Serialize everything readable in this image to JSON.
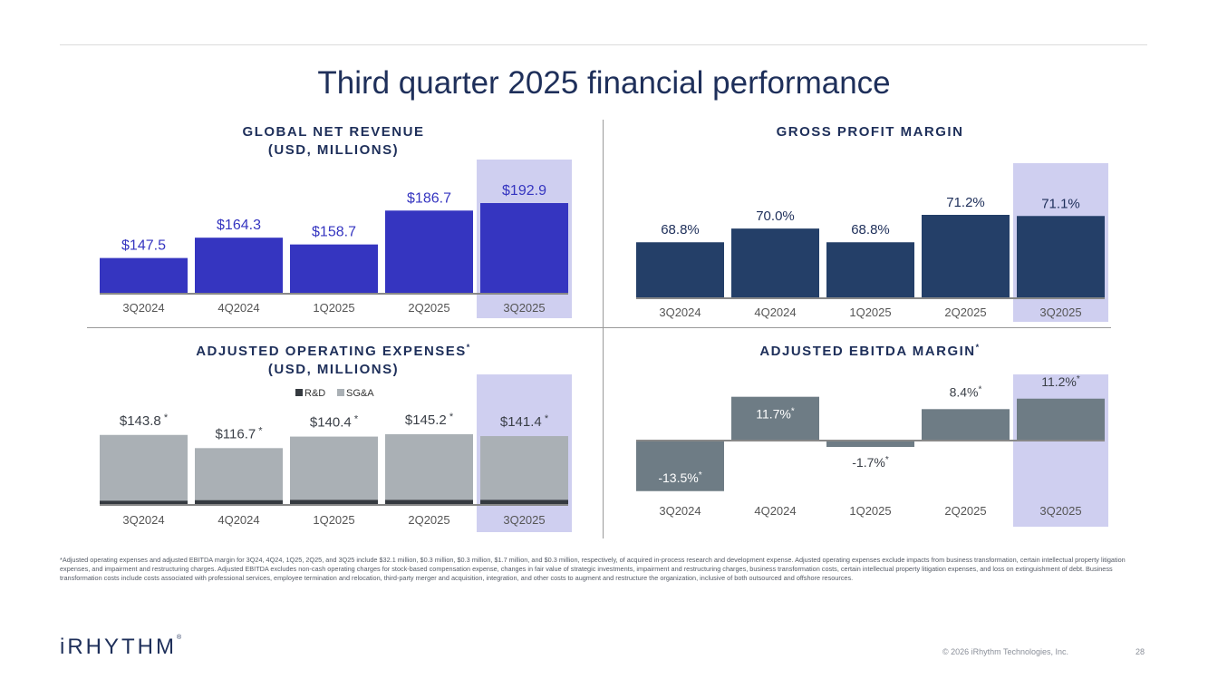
{
  "title": "Third quarter 2025 financial performance",
  "colors": {
    "revenue_bar": "#3535c0",
    "revenue_label": "#3535c0",
    "navy_bar": "#243f68",
    "gray_bar": "#6e7c85",
    "sga": "#aab0b5",
    "rnd": "#353a40",
    "highlight": "#cfcff0",
    "axis": "#888888",
    "tick": "#555555"
  },
  "chart_data": [
    {
      "type": "bar",
      "title": "GLOBAL NET REVENUE",
      "subtitle": "(USD, MILLIONS)",
      "categories": [
        "3Q2024",
        "4Q2024",
        "1Q2025",
        "2Q2025",
        "3Q2025"
      ],
      "values": [
        147.5,
        164.3,
        158.7,
        186.7,
        192.9
      ],
      "labels": [
        "$147.5",
        "$164.3",
        "$158.7",
        "$186.7",
        "$192.9"
      ],
      "highlight": "3Q2025",
      "ylim": [
        100,
        200
      ]
    },
    {
      "type": "bar",
      "title": "GROSS PROFIT MARGIN",
      "subtitle": "",
      "categories": [
        "3Q2024",
        "4Q2024",
        "1Q2025",
        "2Q2025",
        "3Q2025"
      ],
      "values": [
        68.8,
        70.0,
        68.8,
        71.2,
        71.1
      ],
      "labels": [
        "68.8%",
        "70.0%",
        "68.8%",
        "71.2%",
        "71.1%"
      ],
      "highlight": "3Q2025",
      "ylim": [
        65,
        72
      ]
    },
    {
      "type": "bar",
      "stacked": true,
      "title": "ADJUSTED OPERATING EXPENSES",
      "title_mark": "*",
      "subtitle": "(USD, MILLIONS)",
      "categories": [
        "3Q2024",
        "4Q2024",
        "1Q2025",
        "2Q2025",
        "3Q2025"
      ],
      "totals": [
        143.8,
        116.7,
        140.4,
        145.2,
        141.4
      ],
      "labels": [
        "$143.8",
        "$116.7",
        "$140.4",
        "$145.2",
        "$141.4"
      ],
      "label_marks": [
        "*",
        "*",
        "*",
        "*",
        "*"
      ],
      "series": [
        {
          "name": "R&D",
          "values": [
            16,
            18,
            19,
            19,
            19
          ]
        },
        {
          "name": "SG&A",
          "values": [
            127.8,
            98.7,
            121.4,
            126.2,
            122.4
          ]
        }
      ],
      "highlight": "3Q2025",
      "ylim": [
        0,
        150
      ]
    },
    {
      "type": "bar",
      "title": "ADJUSTED EBITDA MARGIN",
      "title_mark": "*",
      "subtitle": "",
      "categories": [
        "3Q2024",
        "4Q2024",
        "1Q2025",
        "2Q2025",
        "3Q2025"
      ],
      "values": [
        -13.5,
        11.7,
        -1.7,
        8.4,
        11.2
      ],
      "labels": [
        "-13.5%",
        "11.7%",
        "-1.7%",
        "8.4%",
        "11.2%"
      ],
      "label_marks": [
        "*",
        "*",
        "*",
        "*",
        "*"
      ],
      "highlight": "3Q2025",
      "ylim": [
        -14,
        12
      ]
    }
  ],
  "footnote": "*Adjusted operating expenses and adjusted EBITDA margin for 3Q24, 4Q24, 1Q25, 2Q25, and 3Q25 include $32.1 million, $0.3 million, $0.3 million, $1.7 million, and $0.3 million, respectively, of acquired in-process research and development expense. Adjusted operating expenses exclude impacts from business transformation, certain intellectual property litigation expenses, and impairment and restructuring charges. Adjusted EBITDA excludes non-cash operating charges for stock-based compensation expense, changes in fair value of strategic investments, impairment and restructuring charges, business transformation costs, certain intellectual property litigation expenses, and loss on extinguishment of debt. Business transformation costs include costs associated with professional services, employee termination and relocation, third-party merger and acquisition, integration, and other costs to augment and restructure the organization, inclusive of both outsourced and offshore resources.",
  "logo": {
    "text": "iRHYTHM",
    "mark": "®"
  },
  "copyright": "© 2026 iRhythm Technologies, Inc.",
  "page_number": "28"
}
